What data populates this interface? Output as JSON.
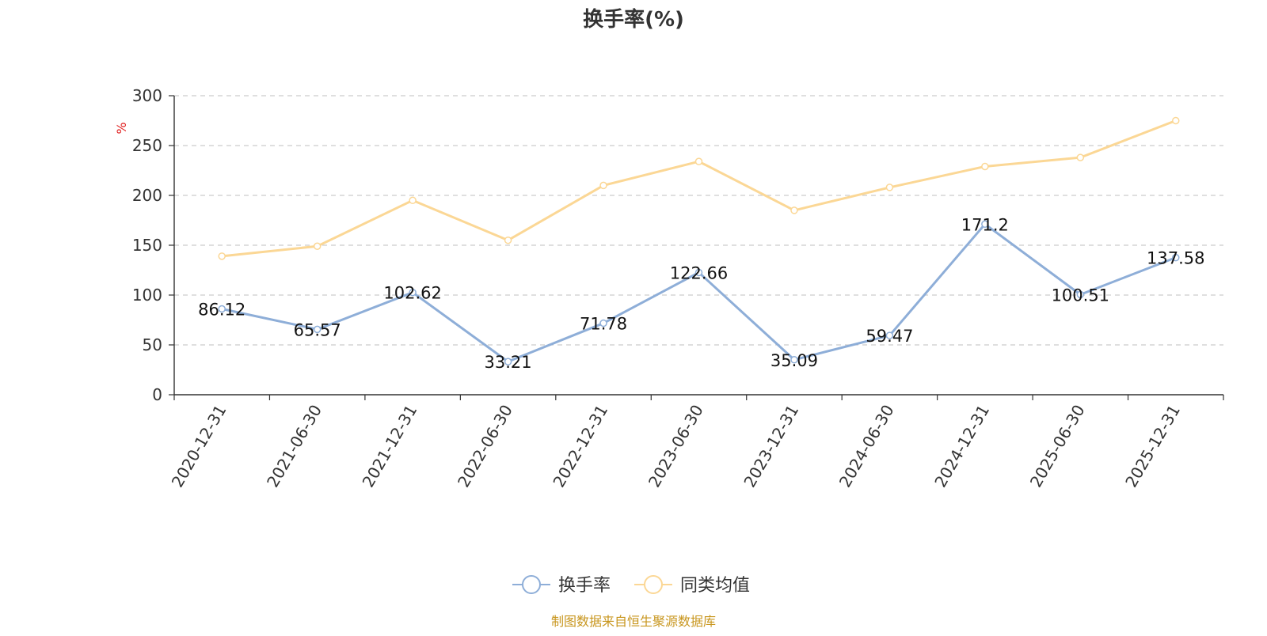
{
  "chart_data": {
    "type": "line",
    "title": "换手率(%)",
    "ylabel": "%",
    "xlabel": "",
    "ylim": [
      0,
      300
    ],
    "yticks": [
      "0",
      "50",
      "100",
      "150",
      "200",
      "250",
      "300"
    ],
    "categories": [
      "2020-12-31",
      "2021-06-30",
      "2021-12-31",
      "2022-06-30",
      "2022-12-31",
      "2023-06-30",
      "2023-12-31",
      "2024-06-30",
      "2024-12-31",
      "2025-06-30",
      "2025-12-31"
    ],
    "series": [
      {
        "name": "换手率",
        "values": [
          86.12,
          65.57,
          102.62,
          33.21,
          71.78,
          122.66,
          35.09,
          59.47,
          171.2,
          100.51,
          137.58
        ],
        "labels": [
          "86.12",
          "65.57",
          "102.62",
          "33.21",
          "71.78",
          "122.66",
          "35.09",
          "59.47",
          "171.2",
          "100.51",
          "137.58"
        ],
        "color": "#8eaed8"
      },
      {
        "name": "同类均值",
        "values": [
          139,
          149,
          195,
          155,
          210,
          234,
          185,
          208,
          229,
          238,
          275
        ],
        "color": "#fbd795"
      }
    ],
    "grid": true,
    "legend": "bottom-center"
  },
  "footer": {
    "source": "制图数据来自恒生聚源数据库"
  },
  "colors": {
    "axis": "#333333",
    "grid": "#cccccc",
    "ylabel": "#e02020",
    "title": "#333333",
    "footer": "#c8961e"
  }
}
